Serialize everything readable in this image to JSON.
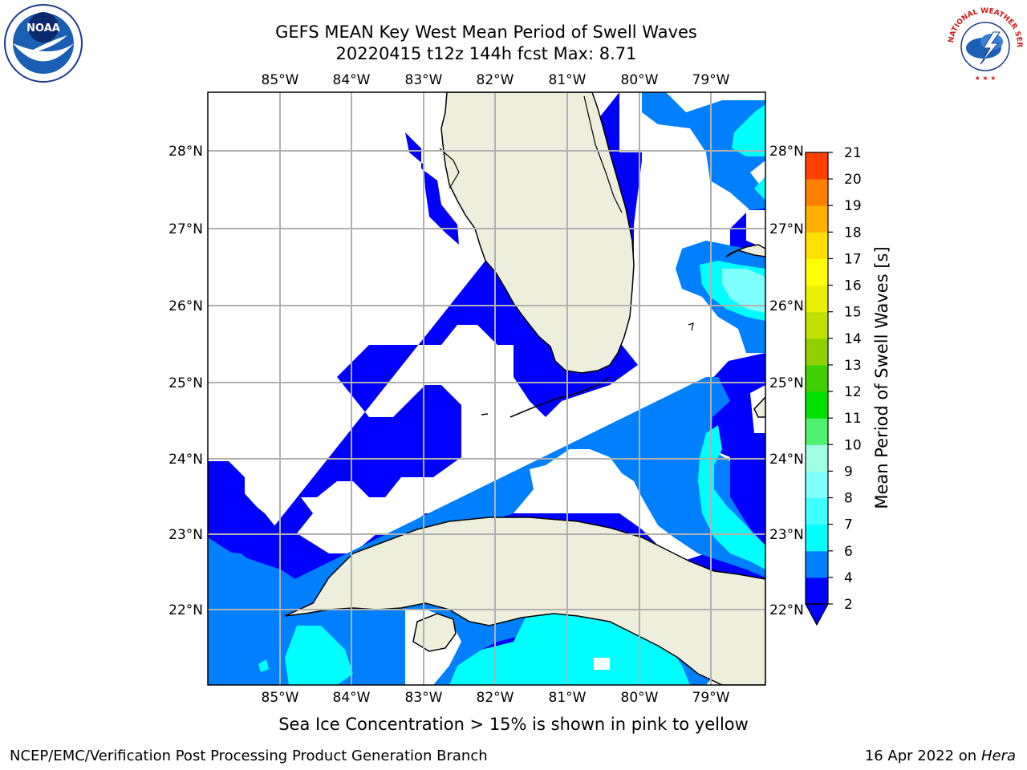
{
  "header": {
    "title_line1": "GEFS MEAN Key West Mean Period of Swell Waves",
    "title_line2": "20220415 t12z 144h fcst   Max: 8.71"
  },
  "map": {
    "lon_labels": [
      "85°W",
      "84°W",
      "83°W",
      "82°W",
      "81°W",
      "80°W",
      "79°W"
    ],
    "lat_labels": [
      "28°N",
      "27°N",
      "26°N",
      "25°N",
      "24°N",
      "23°N",
      "22°N"
    ],
    "colors": {
      "land": "#eeeedd",
      "ocean_nodata": "#ffffff",
      "grid": "#b0b0b0"
    }
  },
  "colorbar": {
    "label": "Mean Period of Swell Waves [s]",
    "ticks": [
      "2",
      "4",
      "6",
      "7",
      "8",
      "9",
      "10",
      "11",
      "12",
      "13",
      "14",
      "15",
      "16",
      "17",
      "18",
      "19",
      "20",
      "21"
    ],
    "colors": [
      "#0000ff",
      "#0080ff",
      "#00ffff",
      "#40ffff",
      "#80ffff",
      "#a0ffe0",
      "#50f070",
      "#00e000",
      "#40d000",
      "#90d000",
      "#c0e000",
      "#e8f000",
      "#ffff00",
      "#ffe000",
      "#ffb000",
      "#ff8000",
      "#ff4000",
      "#ff0000"
    ]
  },
  "footer": {
    "ice_note": "Sea Ice Concentration > 15% is shown in pink to yellow",
    "credit_left": "NCEP/EMC/Verification Post Processing Product Generation Branch",
    "credit_date": "16 Apr 2022 on ",
    "credit_machine": "Hera"
  },
  "logos": {
    "noaa_text": "NOAA",
    "nws_text": "NATIONAL WEATHER SERVICE"
  }
}
